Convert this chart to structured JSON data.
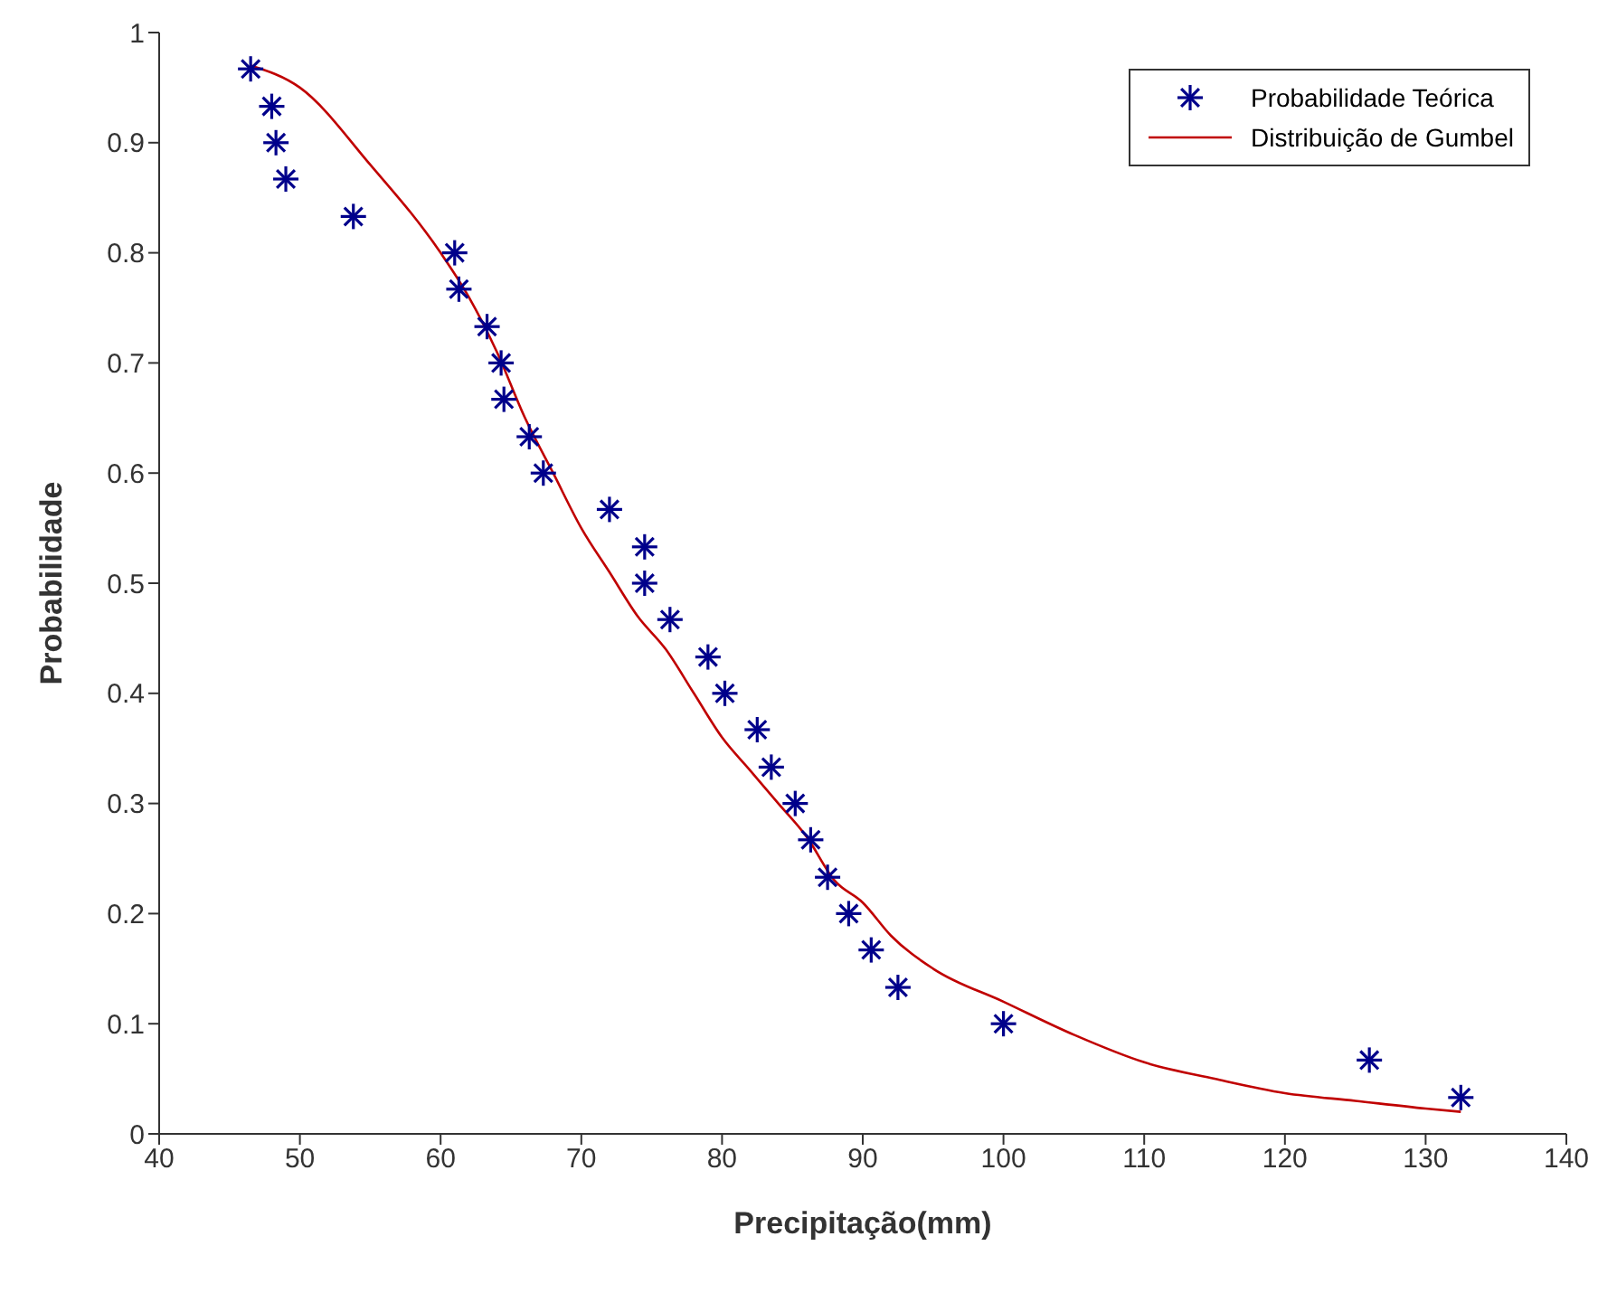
{
  "chart_data": {
    "type": "scatter",
    "xlabel": "Precipitação(mm)",
    "ylabel": "Probabilidade",
    "xlim": [
      40,
      140
    ],
    "ylim": [
      0,
      1
    ],
    "xticks": [
      40,
      50,
      60,
      70,
      80,
      90,
      100,
      110,
      120,
      130,
      140
    ],
    "yticks": [
      0,
      0.1,
      0.2,
      0.3,
      0.4,
      0.5,
      0.6,
      0.7,
      0.8,
      0.9,
      1
    ],
    "grid": false,
    "legend": "top right",
    "series": [
      {
        "name": "Probabilidade Teórica",
        "marker": "cross",
        "color": "#00008b",
        "x": [
          46.5,
          48,
          48.3,
          49,
          53.8,
          61,
          61.3,
          63.3,
          64.3,
          64.5,
          66.3,
          67.3,
          72,
          74.5,
          74.5,
          76.3,
          79,
          80.2,
          82.5,
          83.5,
          85.2,
          86.3,
          87.5,
          89,
          90.6,
          92.5,
          100,
          126,
          132.5
        ],
        "values": [
          0.967,
          0.933,
          0.9,
          0.867,
          0.833,
          0.8,
          0.767,
          0.733,
          0.7,
          0.667,
          0.633,
          0.6,
          0.567,
          0.533,
          0.5,
          0.467,
          0.433,
          0.4,
          0.367,
          0.333,
          0.3,
          0.267,
          0.233,
          0.2,
          0.167,
          0.133,
          0.1,
          0.067,
          0.033
        ]
      },
      {
        "name": "Distribuição de Gumbel",
        "type": "line",
        "line_style": "solid",
        "color": "#c00000",
        "x": [
          46.5,
          50,
          55,
          60,
          62,
          64,
          66,
          68,
          70,
          72,
          74,
          76,
          78,
          80,
          82,
          84,
          86,
          88,
          90,
          92,
          95,
          100,
          105,
          110,
          115,
          120,
          125,
          130,
          132.5
        ],
        "values": [
          0.97,
          0.95,
          0.88,
          0.8,
          0.76,
          0.71,
          0.65,
          0.6,
          0.55,
          0.51,
          0.47,
          0.44,
          0.4,
          0.36,
          0.33,
          0.3,
          0.27,
          0.23,
          0.21,
          0.18,
          0.15,
          0.12,
          0.09,
          0.065,
          0.05,
          0.037,
          0.03,
          0.023,
          0.02
        ]
      }
    ]
  }
}
